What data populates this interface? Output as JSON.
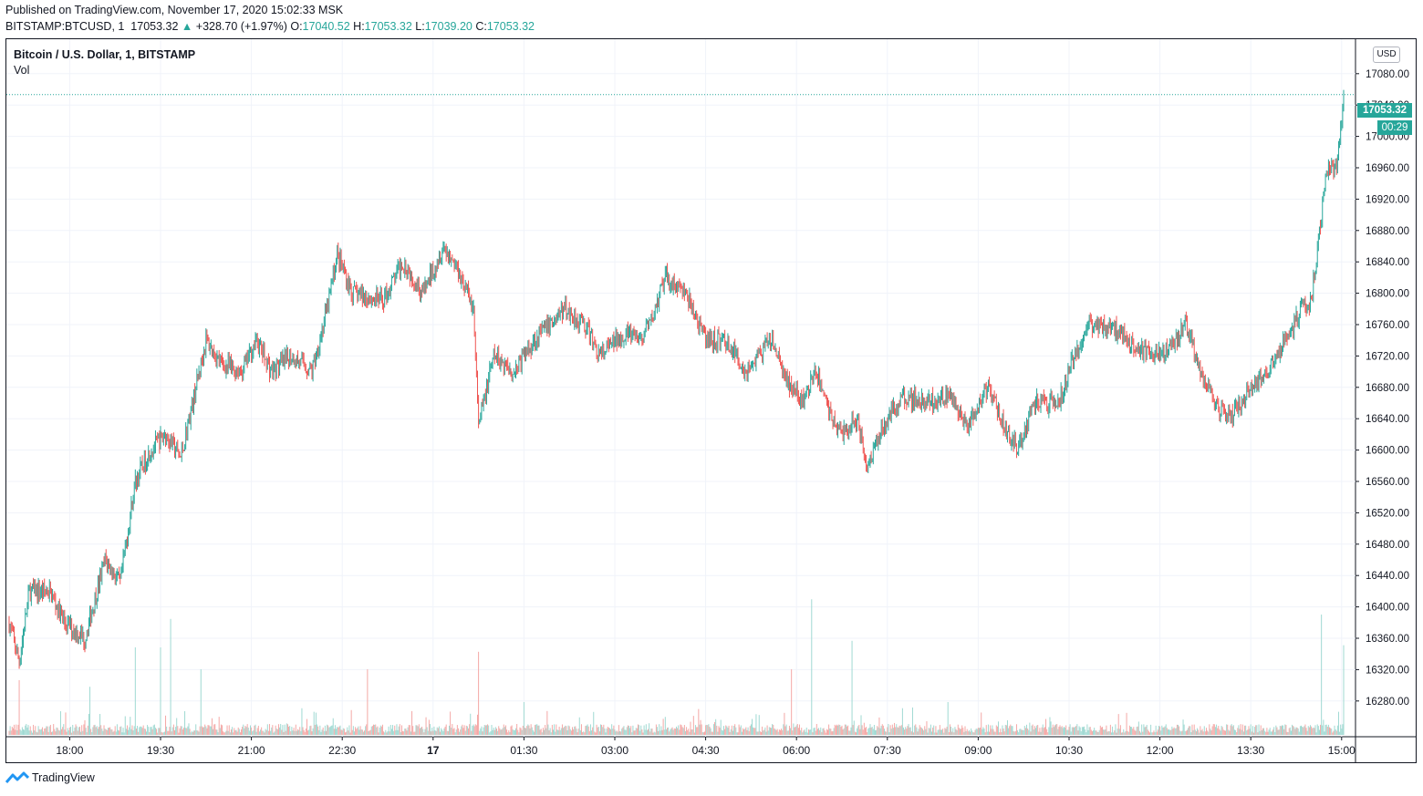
{
  "header": {
    "published": "Published on TradingView.com, November 17, 2020 15:02:33 MSK",
    "symbol": "BITSTAMP:BTCUSD, 1",
    "last": "17053.32",
    "change": "+328.70 (+1.97%)",
    "o_label": "O:",
    "o_value": "17040.52",
    "h_label": "H:",
    "h_value": "17053.32",
    "l_label": "L:",
    "l_value": "17039.20",
    "c_label": "C:",
    "c_value": "17053.32"
  },
  "legend": {
    "title": "Bitcoin / U.S. Dollar, 1, BITSTAMP",
    "volume": "Vol"
  },
  "scale": {
    "currency": "USD",
    "last_price": "17053.32",
    "countdown": "00:29"
  },
  "footer": {
    "brand": "TradingView"
  },
  "colors": {
    "up": "#26a69a",
    "down": "#ef5350",
    "grid": "#f0f3fa",
    "text": "#131722"
  },
  "chart_data": {
    "type": "candlestick",
    "title": "Bitcoin / U.S. Dollar, 1, BITSTAMP",
    "ylim": [
      16240,
      17120
    ],
    "y_ticks": [
      16280,
      16320,
      16360,
      16400,
      16440,
      16480,
      16520,
      16560,
      16600,
      16640,
      16680,
      16720,
      16760,
      16800,
      16840,
      16880,
      16920,
      16960,
      17000,
      17040,
      17080
    ],
    "x_ticks": [
      "18:00",
      "19:30",
      "21:00",
      "22:30",
      "17",
      "01:30",
      "03:00",
      "04:30",
      "06:00",
      "07:30",
      "09:00",
      "10:30",
      "12:00",
      "13:30",
      "15:00"
    ],
    "price_path": [
      [
        "17:00",
        16380
      ],
      [
        "17:10",
        16330
      ],
      [
        "17:20",
        16420
      ],
      [
        "17:40",
        16420
      ],
      [
        "17:55",
        16380
      ],
      [
        "18:15",
        16360
      ],
      [
        "18:35",
        16460
      ],
      [
        "18:50",
        16430
      ],
      [
        "19:05",
        16560
      ],
      [
        "19:20",
        16600
      ],
      [
        "19:35",
        16620
      ],
      [
        "19:50",
        16590
      ],
      [
        "20:00",
        16650
      ],
      [
        "20:15",
        16740
      ],
      [
        "20:30",
        16710
      ],
      [
        "20:50",
        16700
      ],
      [
        "21:05",
        16740
      ],
      [
        "21:20",
        16700
      ],
      [
        "21:40",
        16720
      ],
      [
        "22:00",
        16700
      ],
      [
        "22:15",
        16780
      ],
      [
        "22:25",
        16850
      ],
      [
        "22:40",
        16800
      ],
      [
        "23:10",
        16790
      ],
      [
        "23:30",
        16840
      ],
      [
        "23:50",
        16800
      ],
      [
        "00:10",
        16860
      ],
      [
        "00:25",
        16830
      ],
      [
        "00:40",
        16780
      ],
      [
        "00:45",
        16630
      ],
      [
        "01:00",
        16720
      ],
      [
        "01:20",
        16700
      ],
      [
        "01:40",
        16740
      ],
      [
        "02:10",
        16780
      ],
      [
        "02:30",
        16760
      ],
      [
        "02:45",
        16720
      ],
      [
        "03:10",
        16750
      ],
      [
        "03:25",
        16740
      ],
      [
        "03:35",
        16760
      ],
      [
        "03:50",
        16820
      ],
      [
        "04:10",
        16800
      ],
      [
        "04:30",
        16740
      ],
      [
        "04:50",
        16740
      ],
      [
        "05:10",
        16700
      ],
      [
        "05:35",
        16740
      ],
      [
        "05:50",
        16690
      ],
      [
        "06:05",
        16660
      ],
      [
        "06:20",
        16700
      ],
      [
        "06:35",
        16640
      ],
      [
        "06:45",
        16620
      ],
      [
        "07:00",
        16640
      ],
      [
        "07:10",
        16580
      ],
      [
        "07:25",
        16630
      ],
      [
        "07:45",
        16670
      ],
      [
        "08:10",
        16660
      ],
      [
        "08:30",
        16670
      ],
      [
        "08:50",
        16630
      ],
      [
        "09:10",
        16680
      ],
      [
        "09:30",
        16620
      ],
      [
        "09:40",
        16600
      ],
      [
        "09:55",
        16660
      ],
      [
        "10:20",
        16660
      ],
      [
        "10:35",
        16720
      ],
      [
        "10:50",
        16760
      ],
      [
        "11:10",
        16760
      ],
      [
        "11:30",
        16740
      ],
      [
        "11:50",
        16720
      ],
      [
        "12:10",
        16730
      ],
      [
        "12:25",
        16760
      ],
      [
        "12:40",
        16700
      ],
      [
        "12:55",
        16660
      ],
      [
        "13:10",
        16640
      ],
      [
        "13:25",
        16670
      ],
      [
        "13:45",
        16700
      ],
      [
        "14:05",
        16740
      ],
      [
        "14:20",
        16780
      ],
      [
        "14:30",
        16790
      ],
      [
        "14:40",
        16900
      ],
      [
        "14:45",
        16960
      ],
      [
        "14:55",
        16960
      ],
      [
        "15:02",
        17053.32
      ]
    ],
    "volume_spikes": [
      [
        "17:10",
        0.25
      ],
      [
        "18:20",
        0.22
      ],
      [
        "19:05",
        0.4
      ],
      [
        "19:30",
        0.4
      ],
      [
        "19:40",
        0.53
      ],
      [
        "20:10",
        0.3
      ],
      [
        "22:55",
        0.3
      ],
      [
        "00:45",
        0.38
      ],
      [
        "01:30",
        0.15
      ],
      [
        "05:55",
        0.3
      ],
      [
        "06:15",
        0.62
      ],
      [
        "06:55",
        0.43
      ],
      [
        "08:30",
        0.15
      ],
      [
        "14:40",
        0.55
      ],
      [
        "15:02",
        0.41
      ]
    ]
  }
}
